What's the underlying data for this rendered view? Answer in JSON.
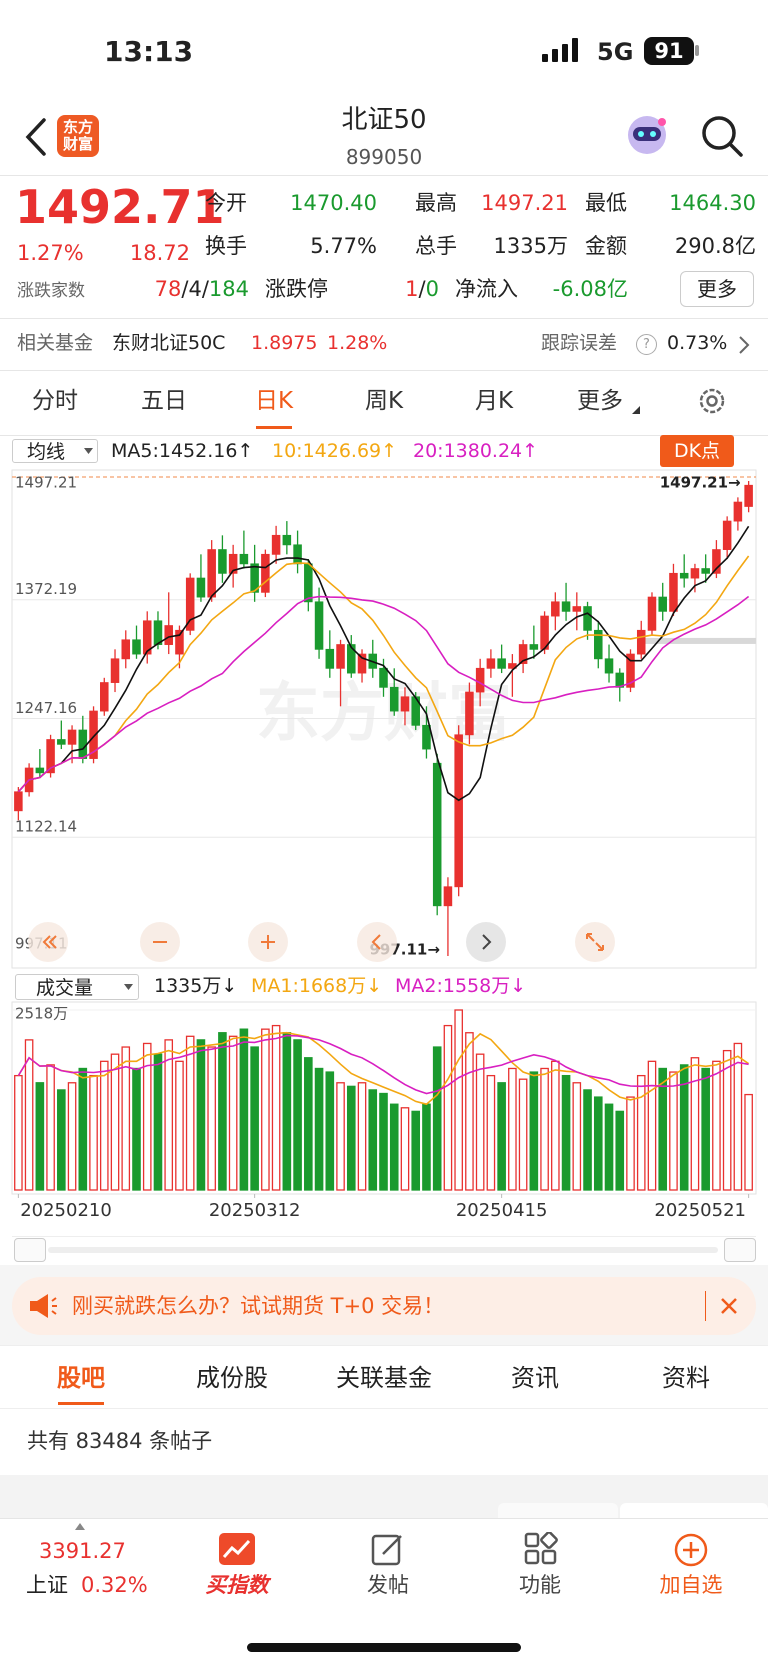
{
  "status_bar": {
    "time": "13:13",
    "network": "5G",
    "battery": "91"
  },
  "header": {
    "logo": [
      "东方",
      "财富"
    ],
    "title": "北证50",
    "code": "899050"
  },
  "quote": {
    "price": "1492.71",
    "change_pct": "1.27%",
    "change": "18.72",
    "open_label": "今开",
    "open": "1470.40",
    "high_label": "最高",
    "high": "1497.21",
    "low_label": "最低",
    "low": "1464.30",
    "turnover_label": "换手",
    "turnover": "5.77%",
    "volume_label": "总手",
    "volume": "1335万",
    "amount_label": "金额",
    "amount": "290.8亿",
    "breadth_label": "涨跌家数",
    "breadth": [
      "78",
      "/",
      "4",
      "/",
      "184"
    ],
    "limit_label": "涨跌停",
    "limit": [
      "1",
      "/",
      "0"
    ],
    "inflow_label": "净流入",
    "inflow": "-6.08亿",
    "more": "更多"
  },
  "fund": {
    "label": "相关基金",
    "name": "东财北证50C",
    "price": "1.8975",
    "change": "1.28%",
    "tracking_label": "跟踪误差",
    "help": "?",
    "tracking": "0.73%"
  },
  "tabs": {
    "items": [
      "分时",
      "五日",
      "日K",
      "周K",
      "月K",
      "更多"
    ],
    "active": 2
  },
  "ma_bar": {
    "selector": "均线",
    "ma5": "MA5:1452.16↑",
    "ma10": "10:1426.69↑",
    "ma20": "20:1380.24↑",
    "dk": "DK点"
  },
  "kline": {
    "ylim": [
      997.11,
      1497.21
    ],
    "yticks": [
      1497.21,
      1372.19,
      1247.16,
      1122.14,
      997.11
    ],
    "high_marker": "1497.21→",
    "low_marker": "997.11→",
    "watermark": "东方财富",
    "dates": [
      "20250210",
      null,
      null,
      null,
      null,
      null,
      null,
      null,
      null,
      null,
      null,
      null,
      null,
      null,
      null,
      null,
      null,
      null,
      null,
      null,
      null,
      null,
      "20250312",
      null,
      null,
      null,
      null,
      null,
      null,
      null,
      null,
      null,
      null,
      null,
      null,
      null,
      null,
      null,
      null,
      null,
      null,
      null,
      null,
      null,
      null,
      "20250415",
      null,
      null,
      null,
      null,
      null,
      null,
      null,
      null,
      null,
      null,
      null,
      null,
      null,
      null,
      null,
      null,
      null,
      null,
      null,
      null,
      null,
      null,
      "20250521"
    ],
    "open": [
      1150,
      1170,
      1195,
      1190,
      1225,
      1220,
      1235,
      1205,
      1255,
      1285,
      1310,
      1330,
      1315,
      1350,
      1325,
      1315,
      1340,
      1395,
      1375,
      1425,
      1400,
      1420,
      1410,
      1380,
      1420,
      1440,
      1430,
      1410,
      1370,
      1320,
      1300,
      1325,
      1295,
      1315,
      1300,
      1280,
      1255,
      1270,
      1240,
      1200,
      1050,
      1070,
      1230,
      1275,
      1300,
      1310,
      1300,
      1305,
      1325,
      1320,
      1355,
      1370,
      1360,
      1365,
      1340,
      1310,
      1295,
      1280,
      1315,
      1340,
      1375,
      1360,
      1400,
      1395,
      1405,
      1400,
      1425,
      1455,
      1470.4
    ],
    "high": [
      1175,
      1200,
      1215,
      1230,
      1245,
      1240,
      1250,
      1260,
      1290,
      1320,
      1340,
      1345,
      1360,
      1360,
      1380,
      1345,
      1400,
      1420,
      1435,
      1440,
      1430,
      1445,
      1430,
      1425,
      1450,
      1455,
      1445,
      1415,
      1385,
      1340,
      1330,
      1335,
      1320,
      1330,
      1310,
      1300,
      1280,
      1275,
      1260,
      1210,
      1080,
      1240,
      1285,
      1310,
      1320,
      1325,
      1315,
      1330,
      1345,
      1360,
      1380,
      1390,
      1380,
      1370,
      1350,
      1325,
      1300,
      1320,
      1350,
      1380,
      1390,
      1410,
      1420,
      1410,
      1420,
      1435,
      1460,
      1480,
      1497.21
    ],
    "low": [
      1140,
      1165,
      1185,
      1185,
      1215,
      1200,
      1200,
      1200,
      1250,
      1275,
      1300,
      1310,
      1305,
      1320,
      1315,
      1300,
      1335,
      1370,
      1370,
      1390,
      1385,
      1405,
      1370,
      1375,
      1410,
      1420,
      1400,
      1360,
      1310,
      1290,
      1260,
      1290,
      1285,
      1290,
      1270,
      1250,
      1240,
      1235,
      1205,
      1040,
      997.11,
      1060,
      1220,
      1260,
      1290,
      1295,
      1270,
      1295,
      1310,
      1315,
      1340,
      1350,
      1340,
      1330,
      1300,
      1285,
      1265,
      1275,
      1310,
      1335,
      1350,
      1355,
      1385,
      1380,
      1390,
      1395,
      1415,
      1445,
      1464.3
    ],
    "close": [
      1170,
      1195,
      1190,
      1225,
      1220,
      1235,
      1205,
      1255,
      1285,
      1310,
      1330,
      1315,
      1350,
      1325,
      1345,
      1340,
      1395,
      1375,
      1425,
      1400,
      1420,
      1410,
      1380,
      1420,
      1440,
      1430,
      1410,
      1370,
      1320,
      1300,
      1325,
      1295,
      1315,
      1300,
      1280,
      1255,
      1270,
      1240,
      1215,
      1050,
      1070,
      1230,
      1275,
      1300,
      1310,
      1300,
      1305,
      1325,
      1320,
      1355,
      1370,
      1360,
      1365,
      1340,
      1310,
      1295,
      1280,
      1315,
      1340,
      1375,
      1360,
      1400,
      1395,
      1405,
      1400,
      1425,
      1455,
      1475,
      1492.71
    ]
  },
  "volume": {
    "selector": "成交量",
    "current": "1335万↓",
    "ma1": "MA1:1668万↓",
    "ma2": "MA2:1558万↓",
    "ylim": [
      0,
      2518
    ],
    "yticks": [
      {
        "value": 2518,
        "label": "2518万"
      }
    ],
    "values": [
      1600,
      2100,
      1500,
      1750,
      1400,
      1500,
      1700,
      1600,
      1800,
      1900,
      2000,
      1700,
      2050,
      1900,
      2100,
      1800,
      2150,
      2100,
      2000,
      2200,
      2150,
      2250,
      2000,
      2250,
      2300,
      2200,
      2100,
      1850,
      1700,
      1650,
      1500,
      1450,
      1500,
      1400,
      1350,
      1200,
      1150,
      1100,
      1200,
      2000,
      2300,
      2518,
      2200,
      1900,
      1600,
      1500,
      1700,
      1550,
      1650,
      1700,
      1800,
      1600,
      1500,
      1400,
      1300,
      1200,
      1100,
      1300,
      1600,
      1800,
      1700,
      1650,
      1750,
      1850,
      1700,
      1800,
      1950,
      2050,
      1335
    ]
  },
  "banner": {
    "text": "刚买就跌怎么办？试试期货 T+0 交易！"
  },
  "sub_tabs": {
    "items": [
      "股吧",
      "成份股",
      "关联基金",
      "资讯",
      "资料"
    ],
    "active": 0
  },
  "posts": {
    "count_text": "共有 83484 条帖子"
  },
  "bottom_nav": {
    "index_value": "3391.27",
    "index_name": "上证",
    "index_change": "0.32%",
    "items": [
      "买指数",
      "发帖",
      "功能",
      "加自选"
    ]
  }
}
